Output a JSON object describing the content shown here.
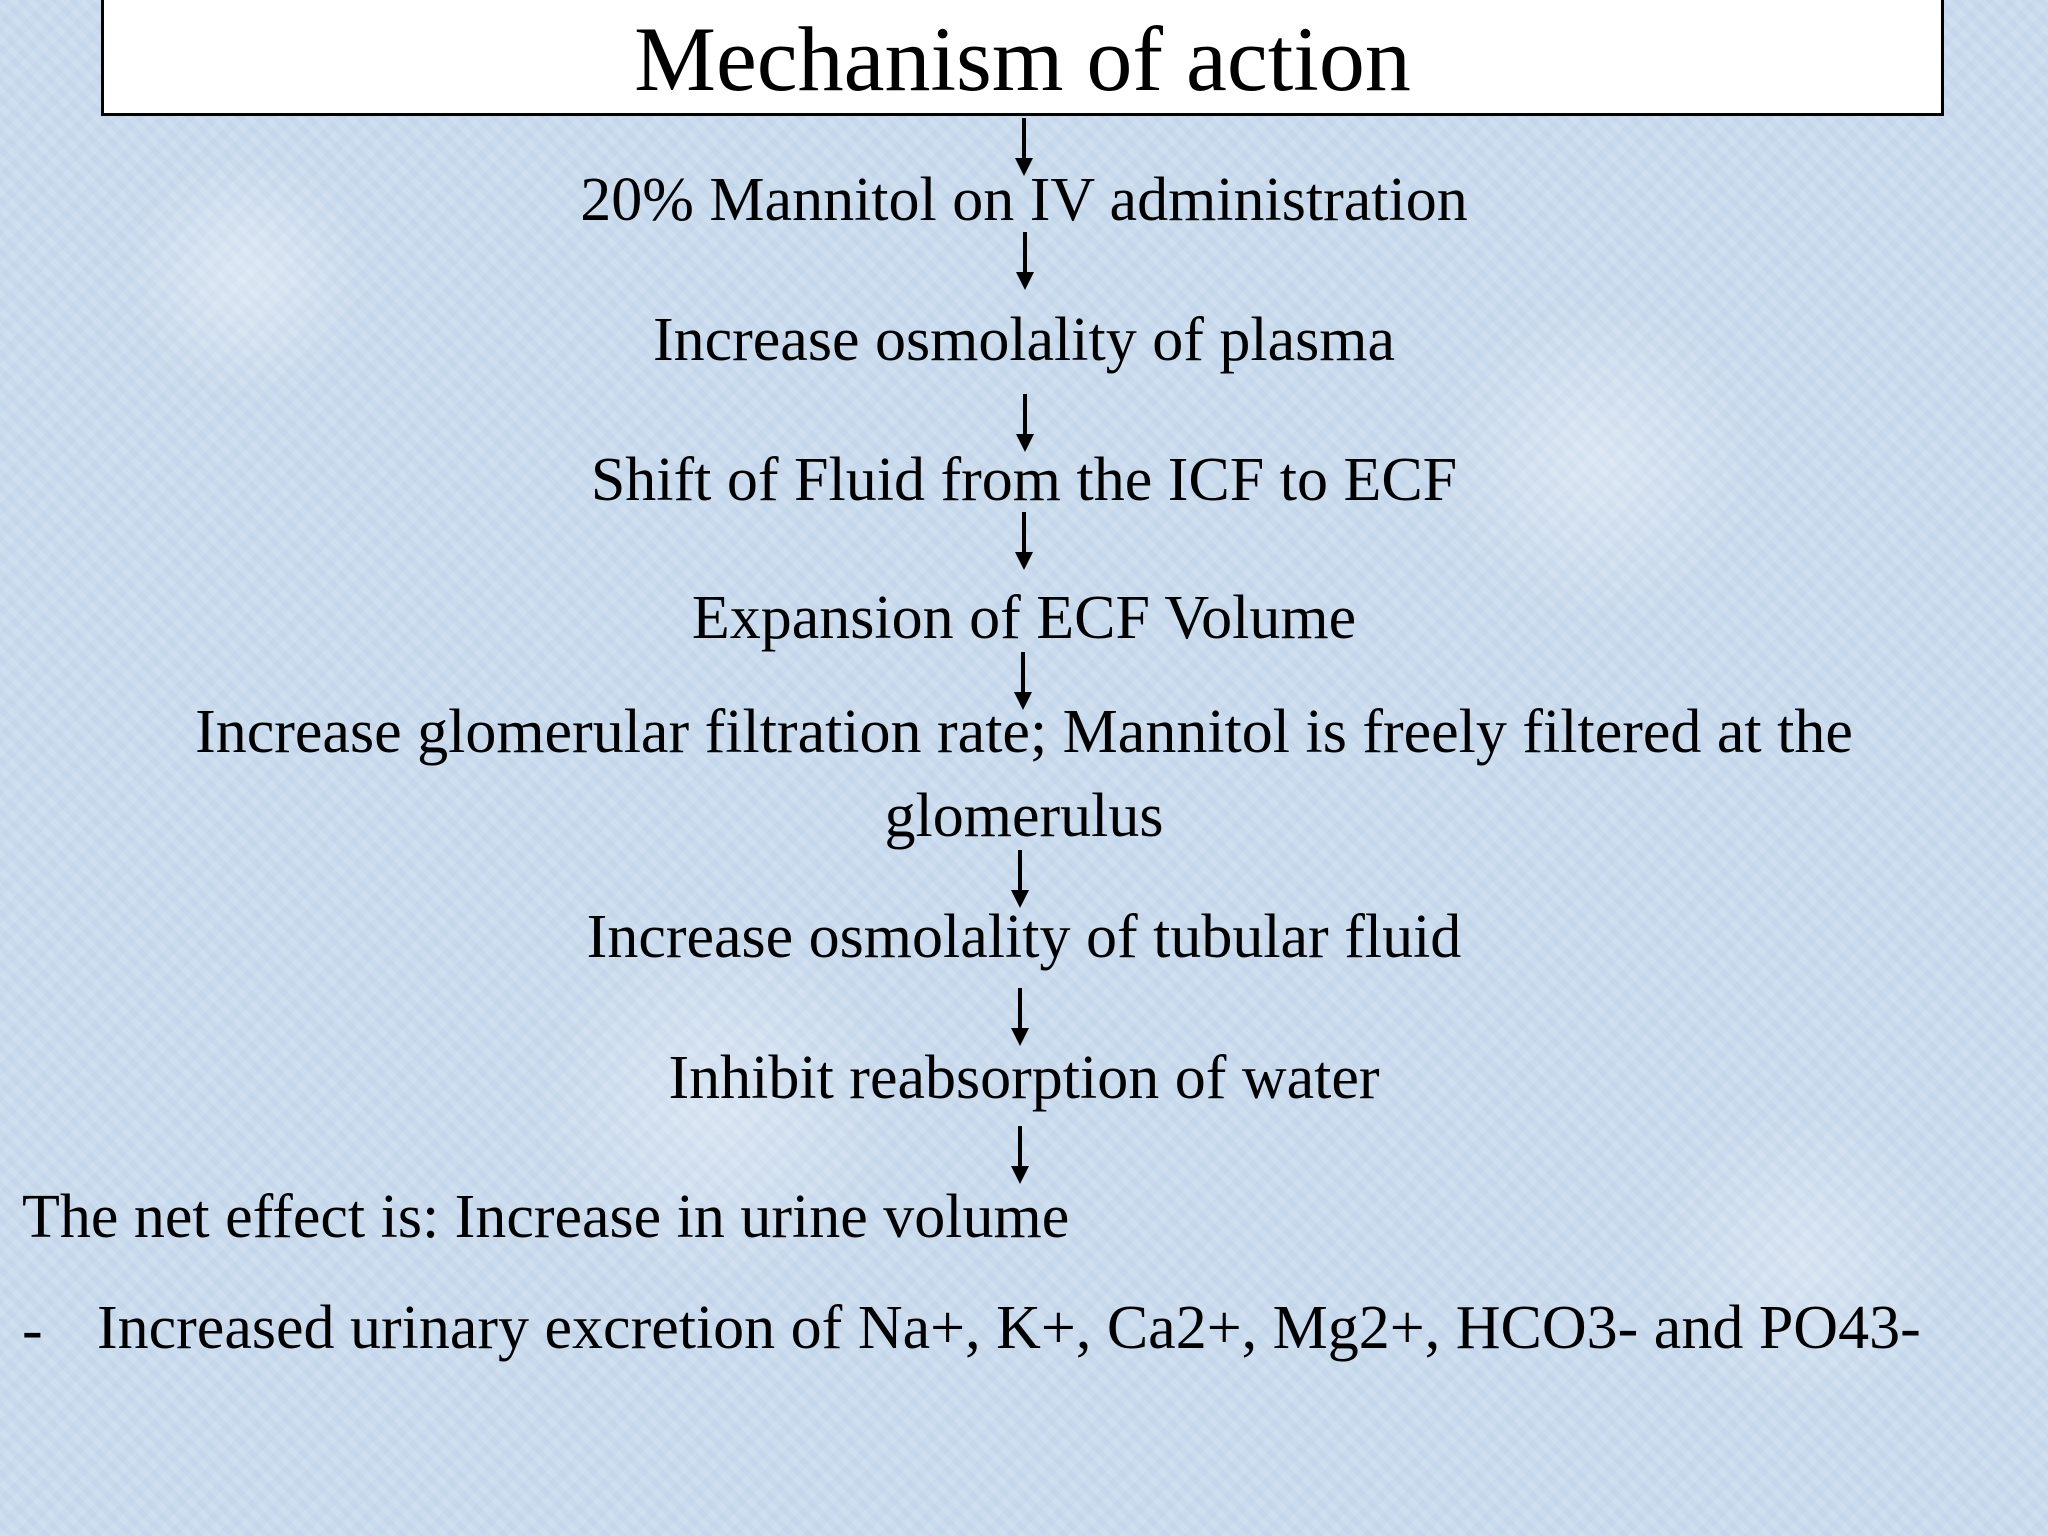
{
  "title": "Mechanism of action",
  "steps": [
    "20% Mannitol on IV administration",
    "Increase osmolality of plasma",
    "Shift of Fluid from the ICF to ECF",
    "Expansion of ECF Volume",
    "Increase glomerular filtration rate; Mannitol is freely filtered at the glomerulus",
    "Increase osmolality of tubular fluid",
    "Inhibit reabsorption of water"
  ],
  "net_effect": "The net effect is:  Increase in urine volume",
  "bullet": {
    "marker": "-",
    "text": "Increased urinary excretion of Na+, K+, Ca2+, Mg2+, HCO3- and PO43-"
  }
}
